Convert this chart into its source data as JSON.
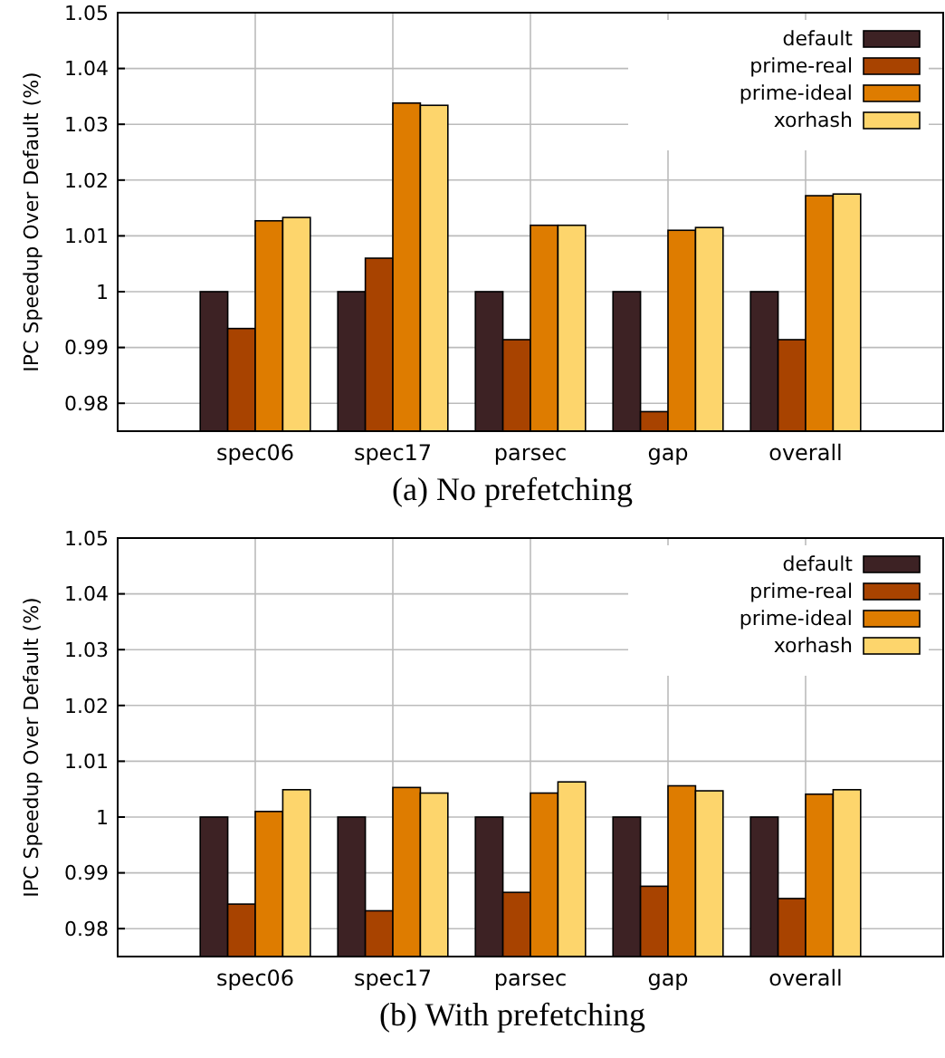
{
  "chart_data": [
    {
      "type": "bar",
      "title": "(a) No prefetching",
      "ylabel": "IPC Speedup Over Default (%)",
      "categories": [
        "spec06",
        "spec17",
        "parsec",
        "gap",
        "overall"
      ],
      "series": [
        {
          "name": "default",
          "color": "#3d2224",
          "values": [
            1,
            1,
            1,
            1,
            1
          ]
        },
        {
          "name": "prime-real",
          "color": "#a84300",
          "values": [
            0.9934,
            1.006,
            0.9914,
            0.9785,
            0.9914
          ]
        },
        {
          "name": "prime-ideal",
          "color": "#de7c00",
          "values": [
            1.0127,
            1.0338,
            1.0119,
            1.011,
            1.0172
          ]
        },
        {
          "name": "xorhash",
          "color": "#fdd56c",
          "values": [
            1.0133,
            1.0334,
            1.0119,
            1.0115,
            1.0175
          ]
        }
      ],
      "ylim": [
        0.975,
        1.05
      ],
      "yticks": [
        0.98,
        0.99,
        {
          "value": 1,
          "label": "1"
        },
        1.01,
        1.02,
        1.03,
        1.04,
        1.05
      ],
      "grid": true,
      "legend": "top right"
    },
    {
      "type": "bar",
      "title": "(b) With prefetching",
      "ylabel": "IPC Speedup Over Default (%)",
      "categories": [
        "spec06",
        "spec17",
        "parsec",
        "gap",
        "overall"
      ],
      "series": [
        {
          "name": "default",
          "color": "#3d2224",
          "values": [
            1,
            1,
            1,
            1,
            1
          ]
        },
        {
          "name": "prime-real",
          "color": "#a84300",
          "values": [
            0.9844,
            0.9832,
            0.9865,
            0.9876,
            0.9854
          ]
        },
        {
          "name": "prime-ideal",
          "color": "#de7c00",
          "values": [
            1.001,
            1.0053,
            1.0043,
            1.0056,
            1.0041
          ]
        },
        {
          "name": "xorhash",
          "color": "#fdd56c",
          "values": [
            1.0049,
            1.0043,
            1.0063,
            1.0047,
            1.0049
          ]
        }
      ],
      "ylim": [
        0.975,
        1.05
      ],
      "yticks": [
        0.98,
        0.99,
        {
          "value": 1,
          "label": "1"
        },
        1.01,
        1.02,
        1.03,
        1.04,
        1.05
      ],
      "grid": true,
      "legend": "top right"
    }
  ]
}
